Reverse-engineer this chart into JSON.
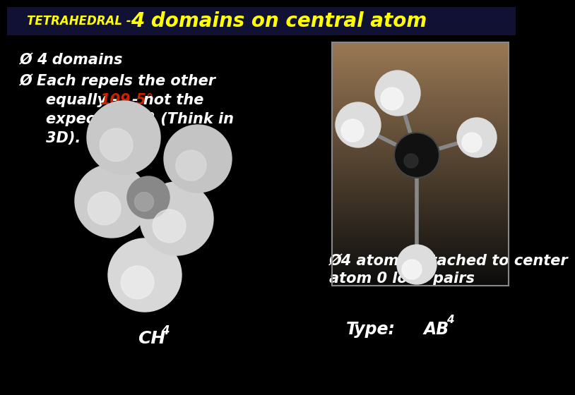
{
  "bg_color": "#000000",
  "title_tetrahedral": "TETRAHEDRAL --",
  "title_main": "4 domains on central atom",
  "title_color": "#ffff00",
  "bullet_color": "#ffffff",
  "red_color": "#cc2200",
  "bullet_fs": 15,
  "title_fs_small": 12,
  "title_fs_large": 20,
  "sub_fs": 11,
  "type_fs": 17,
  "bullet3_fs": 15,
  "ch4_fs": 18,
  "arrow_symbol": "Ø",
  "bullet1": "4 domains",
  "b2_line1": "Each repels the other",
  "b2_line2_pre": "equally - ",
  "b2_angle": "109.5°",
  "b2_line2_post": "- not the",
  "b2_line3": "expected 90° (Think in",
  "b2_line4": "3D).",
  "bullet3_line1": "Ø4 atoms attached to center",
  "bullet3_line2": "atom 0 lone pairs",
  "type_label": "Type:",
  "ab4_main": "AB",
  "ab4_sub": "4",
  "ch4_main": "CH",
  "ch4_sub": "4"
}
